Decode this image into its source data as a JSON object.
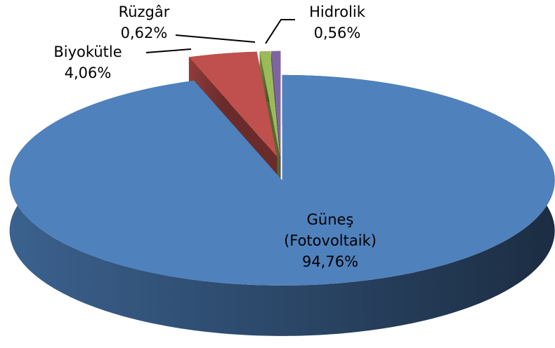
{
  "chart_data": {
    "type": "pie",
    "categories": [
      "Güneş (Fotovoltaik)",
      "Biyokütle",
      "Rüzgâr",
      "Hidrolik"
    ],
    "values": [
      94.76,
      4.06,
      0.62,
      0.56
    ],
    "value_labels": [
      "94,76%",
      "4,06%",
      "0,62%",
      "0,56%"
    ],
    "colors": [
      "#4f81bd",
      "#c0504d",
      "#9bbb59",
      "#8064a2"
    ]
  }
}
